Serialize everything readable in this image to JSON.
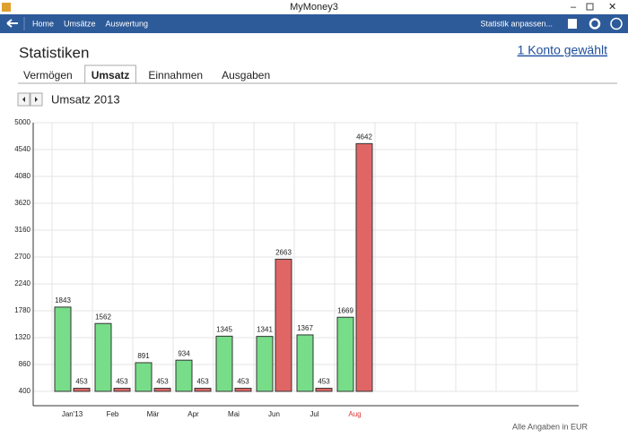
{
  "window": {
    "title": "MyMoney3"
  },
  "nav": {
    "items": [
      "Home",
      "Umsätze",
      "Auswertung"
    ],
    "right": "Statistik anpassen..."
  },
  "page": {
    "title": "Statistiken",
    "link": "1 Konto gewählt",
    "tabs": [
      "Vermögen",
      "Umsatz",
      "Einnahmen",
      "Ausgaben"
    ],
    "active_tab": 1,
    "footer": "Alle Angaben in EUR"
  },
  "chart_data": {
    "type": "bar",
    "title": "Umsatz 2013",
    "categories": [
      "Jan'13",
      "Feb",
      "Mär",
      "Apr",
      "Mai",
      "Jun",
      "Jul",
      "Aug",
      null,
      null,
      null,
      null
    ],
    "series": [
      {
        "color": "#77dd88",
        "values": [
          1843,
          1562,
          891,
          934,
          1345,
          1341,
          1367,
          1669,
          null,
          null,
          null,
          null
        ]
      },
      {
        "color": "#e06666",
        "values": [
          453,
          453,
          453,
          453,
          453,
          2663,
          453,
          4642,
          null,
          null,
          null,
          null
        ]
      }
    ],
    "ylim": [
      400,
      5000
    ],
    "yticks": [
      400,
      860,
      1320,
      1780,
      2240,
      2700,
      3160,
      3620,
      4080,
      4540,
      5000
    ],
    "grid": true
  }
}
